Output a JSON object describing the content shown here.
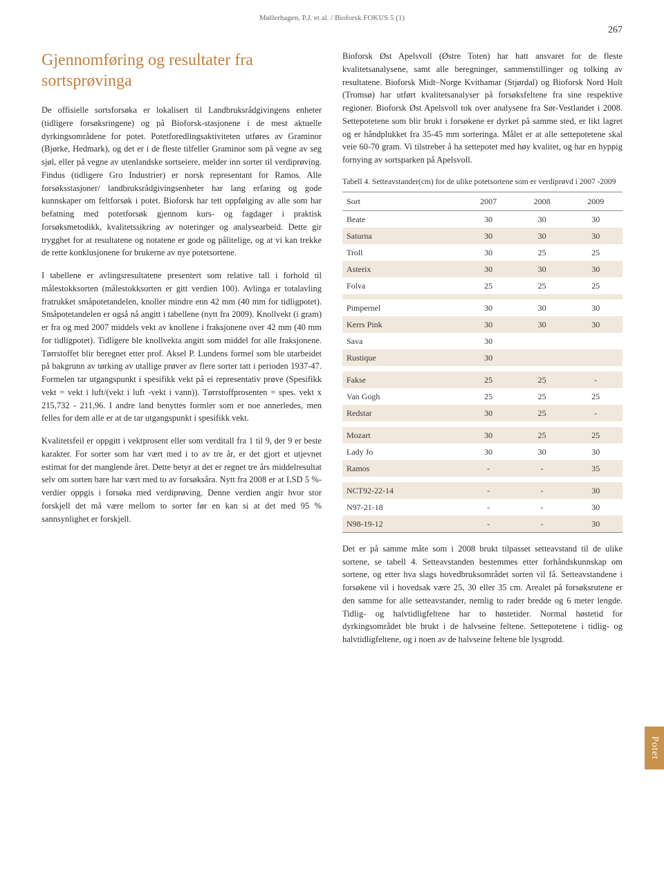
{
  "header": {
    "running_head": "Møllerhagen, P.J. et al. / Bioforsk FOKUS 5 (1)",
    "page_number": "267"
  },
  "left": {
    "title": "Gjennomføring og resultater fra sortsprøvinga",
    "p1": "De offisielle sortsforsøka er lokalisert til Landbruksrådgivingens enheter (tidligere forsøksringene) og på Bioforsk-stasjonene i de mest aktuelle dyrkingsområdene for potet. Potetforedlingsaktiviteten utføres av Graminor (Bjørke, Hedmark), og det er i de fleste tilfeller Graminor som på vegne av seg sjøl, eller på vegne av utenlandske sortseiere, melder inn sorter til verdiprøving. Findus (tidligere Gro Industrier) er norsk representant for Ramos. Alle forsøksstasjoner/ landbruksrådgivingsenheter har lang erfaring og gode kunnskaper om feltforsøk i potet. Bioforsk har tett oppfølging av alle som har befatning med potetforsøk gjennom kurs- og fagdager i praktisk forsøksmetodikk, kvalitetssikring av noteringer og analysearbeid. Dette gir trygghet for at resultatene og notatene er gode og pålitelige, og at vi kan trekke de rette konklusjonene for brukerne av nye potetsortene.",
    "p2": "I tabellene er avlingsresultatene presentert som relative tall i forhold til målestokksorten (målestokksorten er gitt verdien 100). Avlinga er totalavling fratrukket småpotetandelen, knoller mindre enn 42 mm (40 mm for tidligpotet). Småpotetandelen er også nå angitt i tabellene (nytt fra 2009). Knollvekt (i gram) er fra og med 2007 middels vekt av knollene i fraksjonene over 42 mm (40 mm for tidligpotet). Tidligere ble knollvekta angitt som middel for alle fraksjonene. Tørrstoffet blir beregnet etter prof. Aksel P. Lundens formel som ble utarbeidet på bakgrunn av tørking av utallige prøver av flere sorter tatt i perioden 1937-47. Formelen tar utgangspunkt i spesifikk vekt på ei representativ prøve (Spesifikk vekt = vekt i luft/(vekt i luft -vekt i vann)). Tørrstoffprosenten = spes. vekt x 215,732 - 211,96. I andre land benyttes formler som er noe annerledes, men felles for dem alle er at de tar utgangspunkt i spesifikk vekt.",
    "p3": "Kvalitetsfeil er oppgitt i vektprosent eller som verditall fra 1 til 9, der 9 er beste karakter. For sorter som har vært med i to av tre år, er det gjort et utjevnet estimat for det manglende året. Dette betyr at det er regnet tre års middelresultat selv om sorten bare har vært med to av forsøksåra. Nytt fra 2008 er at LSD 5 %- verdier oppgis i forsøka med verdiprøving. Denne verdien angir hvor stor forskjell det må være mellom to sorter før en kan si at det med 95 % sannsynlighet er forskjell."
  },
  "right": {
    "p1": "Bioforsk Øst Apelsvoll (Østre Toten) har hatt ansvaret for de fleste kvalitetsanalysene, samt alle beregninger, sammenstillinger og tolking av resultatene. Bioforsk Midt–Norge Kvithamar (Stjørdal) og Bioforsk Nord Holt (Tromsø) har utført kvalitetsanalyser på forsøksfeltene fra sine respektive regioner. Bioforsk Øst Apelsvoll tok over analysene fra Sør-Vestlandet i 2008. Settepotetene som blir brukt i forsøkene er dyrket på samme sted, er likt lagret og er håndplukket fra 35-45 mm sorteringa. Målet er at alle settepotetene skal veie 60-70 gram. Vi tilstreber å ha settepotet med høy kvalitet, og har en hyppig fornying av sortsparken på Apelsvoll.",
    "p2": "Det er på samme måte som i 2008 brukt tilpasset setteavstand til de ulike sortene, se tabell 4. Setteavstanden bestemmes etter forhåndskunnskap om sortene, og etter hva slags hovedbruksområdet sorten vil få. Setteavstandene i forsøkene vil i hovedsak være 25, 30 eller 35 cm. Arealet på forsøksrutene er den samme for alle setteavstander, nemlig to rader bredde og 6 meter lengde. Tidlig- og halvtidligfeltene har to høstetider. Normal høstetid for dyrkingsområdet ble brukt i de halvseine feltene. Settepotetene i tidlig- og halvtidligfeltene, og i noen av de halvseine feltene ble lysgrodd."
  },
  "table": {
    "caption": "Tabell 4. Setteavstander(cm) for de ulike potetsortene som er verdiprøvd i 2007 -2009",
    "headers": [
      "Sort",
      "2007",
      "2008",
      "2009"
    ],
    "groups": [
      [
        {
          "sort": "Beate",
          "y07": "30",
          "y08": "30",
          "y09": "30"
        },
        {
          "sort": "Saturna",
          "y07": "30",
          "y08": "30",
          "y09": "30"
        },
        {
          "sort": "Troll",
          "y07": "30",
          "y08": "25",
          "y09": "25"
        },
        {
          "sort": "Asterix",
          "y07": "30",
          "y08": "30",
          "y09": "30"
        },
        {
          "sort": "Folva",
          "y07": "25",
          "y08": "25",
          "y09": "25"
        }
      ],
      [
        {
          "sort": "Pimpernel",
          "y07": "30",
          "y08": "30",
          "y09": "30"
        },
        {
          "sort": "Kerrs Pink",
          "y07": "30",
          "y08": "30",
          "y09": "30"
        },
        {
          "sort": "Sava",
          "y07": "30",
          "y08": "",
          "y09": ""
        },
        {
          "sort": "Rustique",
          "y07": "30",
          "y08": "",
          "y09": ""
        }
      ],
      [
        {
          "sort": "Fakse",
          "y07": "25",
          "y08": "25",
          "y09": "-"
        },
        {
          "sort": "Van Gogh",
          "y07": "25",
          "y08": "25",
          "y09": "25"
        },
        {
          "sort": "Redstar",
          "y07": "30",
          "y08": "25",
          "y09": "-"
        }
      ],
      [
        {
          "sort": "Mozart",
          "y07": "30",
          "y08": "25",
          "y09": "25"
        },
        {
          "sort": "Lady Jo",
          "y07": "30",
          "y08": "30",
          "y09": "30"
        },
        {
          "sort": "Ramos",
          "y07": "-",
          "y08": "-",
          "y09": "35"
        }
      ],
      [
        {
          "sort": "NCT92-22-14",
          "y07": "-",
          "y08": "-",
          "y09": "30"
        },
        {
          "sort": "N97-21-18",
          "y07": "-",
          "y08": "-",
          "y09": "30"
        },
        {
          "sort": "N98-19-12",
          "y07": "-",
          "y08": "-",
          "y09": "30"
        }
      ]
    ]
  },
  "side_tab": "Potet",
  "colors": {
    "heading": "#c08040",
    "tab_bg": "#c8924a",
    "row_alt": "#f0e8dc",
    "rule": "#888888"
  }
}
